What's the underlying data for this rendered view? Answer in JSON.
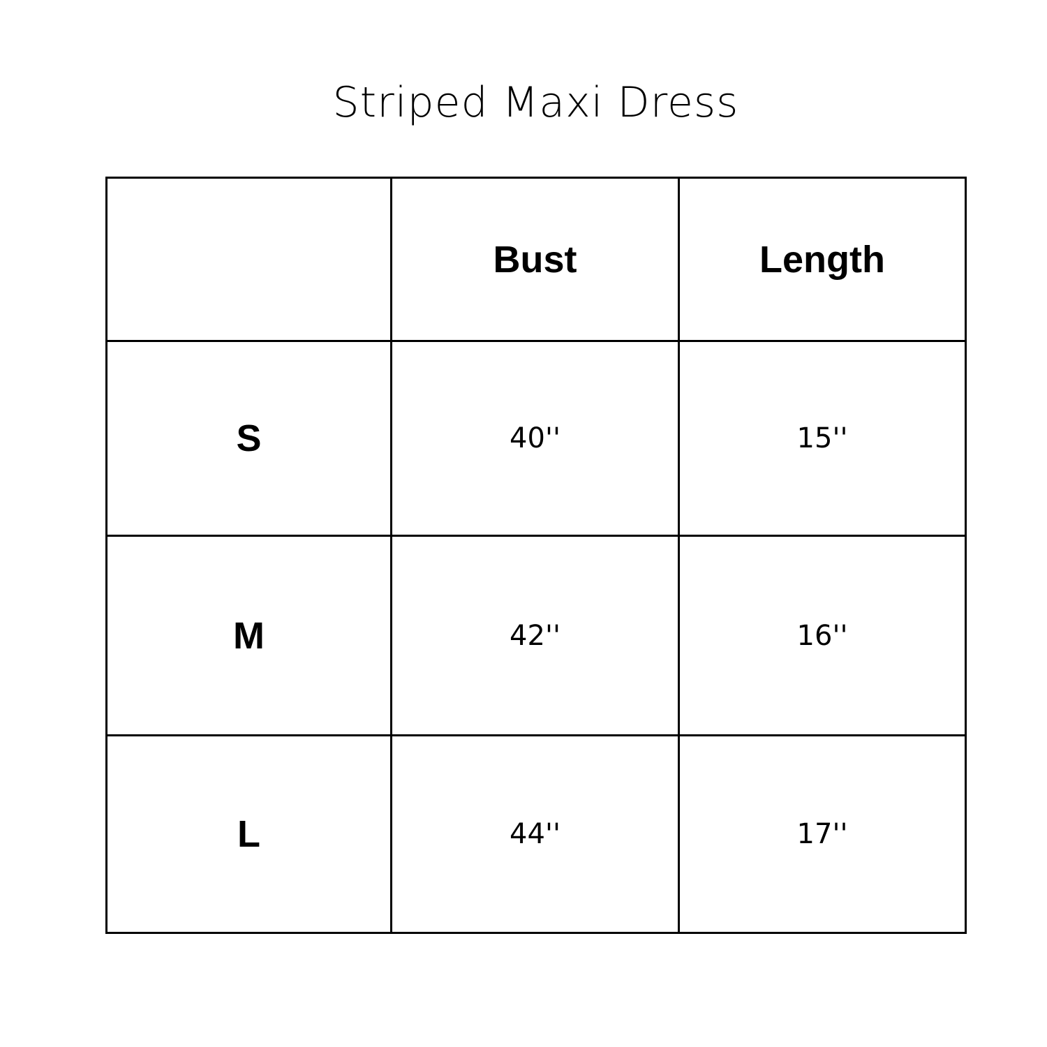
{
  "title": "Striped Maxi Dress",
  "table": {
    "headers": [
      "",
      "Bust",
      "Length"
    ],
    "rows": [
      {
        "size": "S",
        "bust": "40''",
        "length": "15''"
      },
      {
        "size": "M",
        "bust": "42''",
        "length": "16''"
      },
      {
        "size": "L",
        "bust": "44''",
        "length": "17''"
      }
    ]
  }
}
